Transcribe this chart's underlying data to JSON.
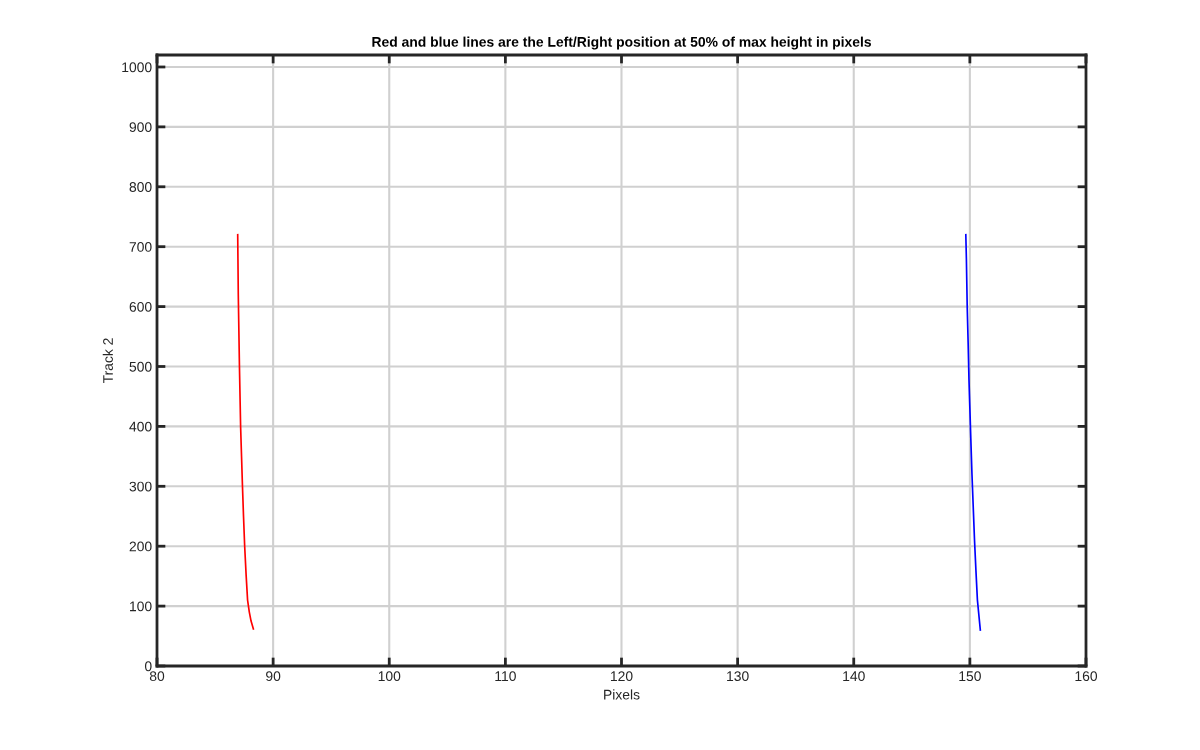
{
  "chart_data": {
    "type": "line",
    "title": "Red and blue lines are the Left/Right position at 50% of max height in pixels",
    "xlabel": "Pixels",
    "ylabel": "Track 2",
    "series": [
      {
        "color": "#ff0000",
        "x": [
          86.95,
          86.97,
          87.0,
          87.05,
          87.1,
          87.15,
          87.2,
          87.28,
          87.36,
          87.45,
          87.55,
          87.68,
          87.8,
          87.95,
          88.1,
          88.3
        ],
        "values": [
          720,
          680,
          620,
          560,
          500,
          450,
          400,
          350,
          300,
          250,
          200,
          150,
          110,
          90,
          75,
          62
        ]
      },
      {
        "color": "#0000ff",
        "x": [
          149.65,
          149.7,
          149.77,
          149.85,
          149.92,
          150.0,
          150.08,
          150.18,
          150.28,
          150.4,
          150.52,
          150.65,
          150.75,
          150.8,
          150.85,
          150.9
        ],
        "values": [
          720,
          680,
          600,
          540,
          480,
          430,
          380,
          320,
          270,
          210,
          160,
          110,
          90,
          80,
          70,
          60
        ]
      }
    ],
    "xlim": [
      80,
      160
    ],
    "xticks": [
      80,
      90,
      100,
      110,
      120,
      130,
      140,
      150,
      160
    ],
    "ylim": [
      0,
      1020
    ],
    "yticks": [
      0,
      100,
      200,
      300,
      400,
      500,
      600,
      700,
      800,
      900,
      1000
    ],
    "grid": true,
    "line_style": "solid",
    "marker": "none"
  }
}
